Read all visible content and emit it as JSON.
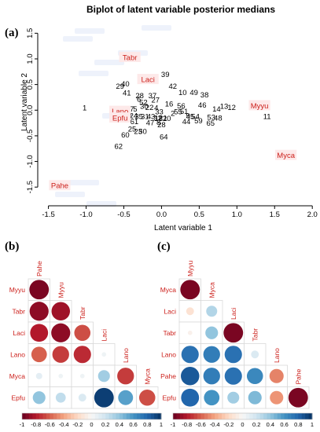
{
  "panels": {
    "a": "(a)",
    "b": "(b)",
    "c": "(c)"
  },
  "colors": {
    "species": "#cc1f1a",
    "negative": "#67001f",
    "positive": "#053061"
  },
  "chart_data": [
    {
      "type": "scatter",
      "title": "Biplot of latent variable posterior medians",
      "xlabel": "Latent variable 1",
      "ylabel": "Latent variable 2",
      "xlim": [
        -1.6,
        2.05
      ],
      "ylim": [
        -1.65,
        1.75
      ],
      "xticks": [
        "-1.5",
        "-1.0",
        "-0.5",
        "0.0",
        "0.5",
        "1.0",
        "1.5",
        "2.0"
      ],
      "yticks": [
        "-1.5",
        "-1.0",
        "-0.5",
        "0.0",
        "0.5",
        "1.0",
        "1.5"
      ],
      "sites": [
        {
          "label": "39",
          "x": 0.05,
          "y": 0.7
        },
        {
          "label": "29",
          "x": -0.55,
          "y": 0.47
        },
        {
          "label": "40",
          "x": -0.48,
          "y": 0.52
        },
        {
          "label": "42",
          "x": 0.15,
          "y": 0.47
        },
        {
          "label": "41",
          "x": -0.46,
          "y": 0.34
        },
        {
          "label": "10",
          "x": 0.28,
          "y": 0.35
        },
        {
          "label": "49",
          "x": 0.43,
          "y": 0.35
        },
        {
          "label": "38",
          "x": 0.57,
          "y": 0.3
        },
        {
          "label": "28",
          "x": -0.29,
          "y": 0.29
        },
        {
          "label": "37",
          "x": -0.12,
          "y": 0.29
        },
        {
          "label": "6",
          "x": -0.3,
          "y": 0.22
        },
        {
          "label": "27",
          "x": -0.08,
          "y": 0.2
        },
        {
          "label": "52",
          "x": -0.24,
          "y": 0.16
        },
        {
          "label": "16",
          "x": 0.1,
          "y": 0.13
        },
        {
          "label": "30",
          "x": -0.23,
          "y": 0.08
        },
        {
          "label": "22",
          "x": -0.16,
          "y": 0.06
        },
        {
          "label": "4",
          "x": -0.07,
          "y": 0.05
        },
        {
          "label": "56",
          "x": 0.26,
          "y": 0.09
        },
        {
          "label": "46",
          "x": 0.54,
          "y": 0.1
        },
        {
          "label": "13",
          "x": 0.83,
          "y": 0.08
        },
        {
          "label": "12",
          "x": 0.93,
          "y": 0.06
        },
        {
          "label": "14",
          "x": 0.73,
          "y": 0.03
        },
        {
          "label": "1",
          "x": -1.02,
          "y": 0.05
        },
        {
          "label": "17",
          "x": -0.42,
          "y": 0.03
        },
        {
          "label": "5",
          "x": -0.35,
          "y": 0.03
        },
        {
          "label": "33",
          "x": -0.03,
          "y": -0.03
        },
        {
          "label": "55",
          "x": 0.22,
          "y": -0.03
        },
        {
          "label": "51",
          "x": 0.3,
          "y": -0.02
        },
        {
          "label": "2",
          "x": 0.15,
          "y": -0.06
        },
        {
          "label": "9",
          "x": 0.35,
          "y": -0.1
        },
        {
          "label": "45",
          "x": 0.38,
          "y": -0.12
        },
        {
          "label": "54",
          "x": 0.45,
          "y": -0.12
        },
        {
          "label": "53",
          "x": 0.66,
          "y": -0.13
        },
        {
          "label": "48",
          "x": 0.75,
          "y": -0.15
        },
        {
          "label": "11",
          "x": 1.4,
          "y": -0.12
        },
        {
          "label": "19",
          "x": -0.48,
          "y": -0.1
        },
        {
          "label": "3",
          "x": -0.42,
          "y": -0.1
        },
        {
          "label": "24",
          "x": -0.37,
          "y": -0.1
        },
        {
          "label": "35",
          "x": -0.3,
          "y": -0.12
        },
        {
          "label": "31",
          "x": -0.22,
          "y": -0.12
        },
        {
          "label": "43",
          "x": -0.14,
          "y": -0.12
        },
        {
          "label": "32",
          "x": -0.05,
          "y": -0.15
        },
        {
          "label": "18",
          "x": -0.04,
          "y": -0.16
        },
        {
          "label": "21",
          "x": 0.02,
          "y": -0.15
        },
        {
          "label": "20",
          "x": 0.07,
          "y": -0.16
        },
        {
          "label": "59",
          "x": 0.49,
          "y": -0.2
        },
        {
          "label": "61",
          "x": -0.36,
          "y": -0.22
        },
        {
          "label": "47",
          "x": -0.15,
          "y": -0.24
        },
        {
          "label": "8",
          "x": -0.04,
          "y": -0.23
        },
        {
          "label": "44",
          "x": 0.33,
          "y": -0.22
        },
        {
          "label": "65",
          "x": 0.65,
          "y": -0.25
        },
        {
          "label": "28",
          "x": 0.0,
          "y": -0.28
        },
        {
          "label": "25",
          "x": -0.39,
          "y": -0.36
        },
        {
          "label": "23",
          "x": -0.31,
          "y": -0.41
        },
        {
          "label": "50",
          "x": -0.25,
          "y": -0.41
        },
        {
          "label": "60",
          "x": -0.48,
          "y": -0.48
        },
        {
          "label": "64",
          "x": 0.03,
          "y": -0.52
        },
        {
          "label": "62",
          "x": -0.57,
          "y": -0.7
        }
      ],
      "species": [
        {
          "label": "Tabr",
          "x": -0.42,
          "y": 1.03
        },
        {
          "label": "Laci",
          "x": -0.18,
          "y": 0.6
        },
        {
          "label": "Myyu",
          "x": 1.3,
          "y": 0.09
        },
        {
          "label": "Lano",
          "x": -0.55,
          "y": -0.02
        },
        {
          "label": "Epfu",
          "x": -0.55,
          "y": -0.15
        },
        {
          "label": "Myca",
          "x": 1.65,
          "y": -0.88
        },
        {
          "label": "Pahe",
          "x": -1.35,
          "y": -1.47
        }
      ]
    },
    {
      "type": "heatmap",
      "variables": [
        "Pahe",
        "Myyu",
        "Tabr",
        "Laci",
        "Lano",
        "Myca",
        "Epfu"
      ],
      "values": [
        [
          -0.95
        ],
        [
          -0.9,
          -0.85
        ],
        [
          -0.8,
          -0.9,
          -0.65
        ],
        [
          -0.6,
          -0.7,
          -0.75,
          0.05
        ],
        [
          0.1,
          0.05,
          0.05,
          0.35,
          -0.7
        ],
        [
          0.4,
          0.25,
          0.15,
          0.95,
          0.55,
          -0.65
        ]
      ],
      "row_labels": [
        "Myyu",
        "Tabr",
        "Laci",
        "Lano",
        "Myca",
        "Epfu"
      ],
      "col_labels": [
        "Pahe",
        "Myyu",
        "Tabr",
        "Laci",
        "Lano",
        "Myca"
      ],
      "colorbar_ticks": [
        "-1",
        "-0.8",
        "-0.6",
        "-0.4",
        "-0.2",
        "0",
        "0.2",
        "0.4",
        "0.6",
        "0.8",
        "1"
      ]
    },
    {
      "type": "heatmap",
      "variables": [
        "Myyu",
        "Myca",
        "Laci",
        "Tabr",
        "Lano",
        "Pahe",
        "Epfu"
      ],
      "values": [
        [
          -0.95
        ],
        [
          -0.15,
          0.3
        ],
        [
          -0.05,
          0.4,
          -0.95
        ],
        [
          0.75,
          0.7,
          0.75,
          0.15
        ],
        [
          0.85,
          0.7,
          0.75,
          0.65,
          -0.5
        ],
        [
          0.8,
          0.6,
          0.35,
          0.45,
          -0.45,
          -0.95
        ]
      ],
      "row_labels": [
        "Myca",
        "Laci",
        "Tabr",
        "Lano",
        "Pahe",
        "Epfu"
      ],
      "col_labels": [
        "Myyu",
        "Myca",
        "Laci",
        "Tabr",
        "Lano",
        "Pahe"
      ],
      "colorbar_ticks": [
        "-1",
        "-0.8",
        "-0.6",
        "-0.4",
        "-0.2",
        "0",
        "0.2",
        "0.4",
        "0.6",
        "0.8",
        "1"
      ]
    }
  ]
}
